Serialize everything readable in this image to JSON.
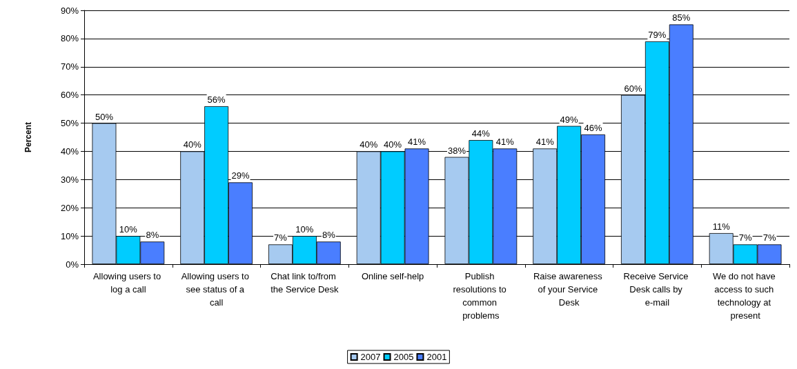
{
  "chart_data": {
    "type": "bar",
    "ylabel": "Percent",
    "categories": [
      "Allowing users to log a call",
      "Allowing users to see status of a call",
      "Chat link to/from the Service Desk",
      "Online self-help",
      "Publish resolutions to common problems",
      "Raise awareness of your Service Desk",
      "Receive Service Desk calls by e-mail",
      "We do not have access to such technology at present"
    ],
    "series": [
      {
        "name": "2007",
        "color": "#a6caf0",
        "values": [
          50,
          40,
          7,
          40,
          38,
          41,
          60,
          11
        ],
        "value_labels": [
          "50%",
          "40%",
          "7%",
          "40%",
          "38%",
          "41%",
          "60%",
          "11%"
        ]
      },
      {
        "name": "2005",
        "color": "#00ccff",
        "values": [
          10,
          56,
          10,
          40,
          44,
          49,
          79,
          7
        ],
        "value_labels": [
          "10%",
          "56%",
          "10%",
          "40%",
          "44%",
          "49%",
          "79%",
          "7%"
        ]
      },
      {
        "name": "2001",
        "color": "#4a7eff",
        "values": [
          8,
          29,
          8,
          41,
          41,
          46,
          85,
          7
        ],
        "value_labels": [
          "8%",
          "29%",
          "8%",
          "41%",
          "41%",
          "46%",
          "85%",
          "7%"
        ]
      }
    ],
    "ylim": [
      0,
      90
    ],
    "yticks": [
      {
        "value": 0,
        "label": "0%"
      },
      {
        "value": 10,
        "label": "10%"
      },
      {
        "value": 20,
        "label": "20%"
      },
      {
        "value": 30,
        "label": "30%"
      },
      {
        "value": 40,
        "label": "40%"
      },
      {
        "value": 50,
        "label": "50%"
      },
      {
        "value": 60,
        "label": "60%"
      },
      {
        "value": 70,
        "label": "70%"
      },
      {
        "value": 80,
        "label": "80%"
      },
      {
        "value": 90,
        "label": "90%"
      }
    ],
    "grid": "y",
    "legend": "bottom"
  }
}
